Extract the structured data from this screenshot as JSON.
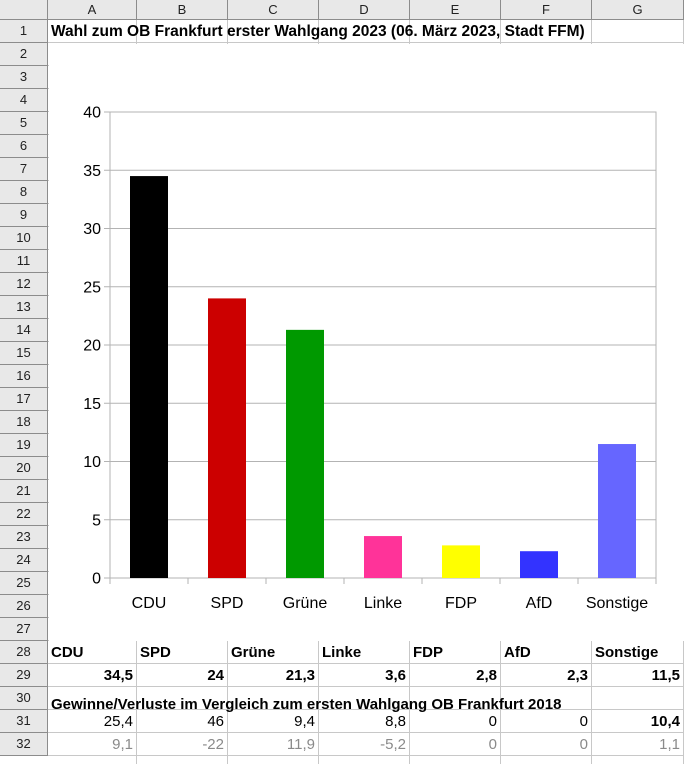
{
  "columns": [
    "A",
    "B",
    "C",
    "D",
    "E",
    "F",
    "G"
  ],
  "rows": [
    "1",
    "2",
    "3",
    "4",
    "5",
    "6",
    "7",
    "8",
    "9",
    "10",
    "11",
    "12",
    "13",
    "14",
    "15",
    "16",
    "17",
    "18",
    "19",
    "20",
    "21",
    "22",
    "23",
    "24",
    "25",
    "26",
    "27",
    "28",
    "29",
    "30",
    "31",
    "32"
  ],
  "title": "Wahl zum OB Frankfurt erster Wahlgang 2023 (06. März 2023, Stadt FFM)",
  "table": {
    "parties": [
      "CDU",
      "SPD",
      "Grüne",
      "Linke",
      "FDP",
      "AfD",
      "Sonstige"
    ],
    "results": [
      "34,5",
      "24",
      "21,3",
      "3,6",
      "2,8",
      "2,3",
      "11,5"
    ],
    "comparison_label": "Gewinne/Verluste im Vergleich zum ersten Wahlgang OB Frankfurt 2018",
    "row31": [
      "25,4",
      "46",
      "9,4",
      "8,8",
      "0",
      "0",
      "10,4"
    ],
    "row32": [
      "9,1",
      "-22",
      "11,9",
      "-5,2",
      "0",
      "0",
      "1,1"
    ]
  },
  "chart_data": {
    "type": "bar",
    "categories": [
      "CDU",
      "SPD",
      "Grüne",
      "Linke",
      "FDP",
      "AfD",
      "Sonstige"
    ],
    "values": [
      34.5,
      24,
      21.3,
      3.6,
      2.8,
      2.3,
      11.5
    ],
    "colors": [
      "#000000",
      "#cc0000",
      "#009900",
      "#ff3399",
      "#ffff00",
      "#3333ff",
      "#6666ff"
    ],
    "ylim": [
      0,
      40
    ],
    "yticks": [
      0,
      5,
      10,
      15,
      20,
      25,
      30,
      35,
      40
    ],
    "grid": true,
    "title": "",
    "xlabel": "",
    "ylabel": ""
  }
}
